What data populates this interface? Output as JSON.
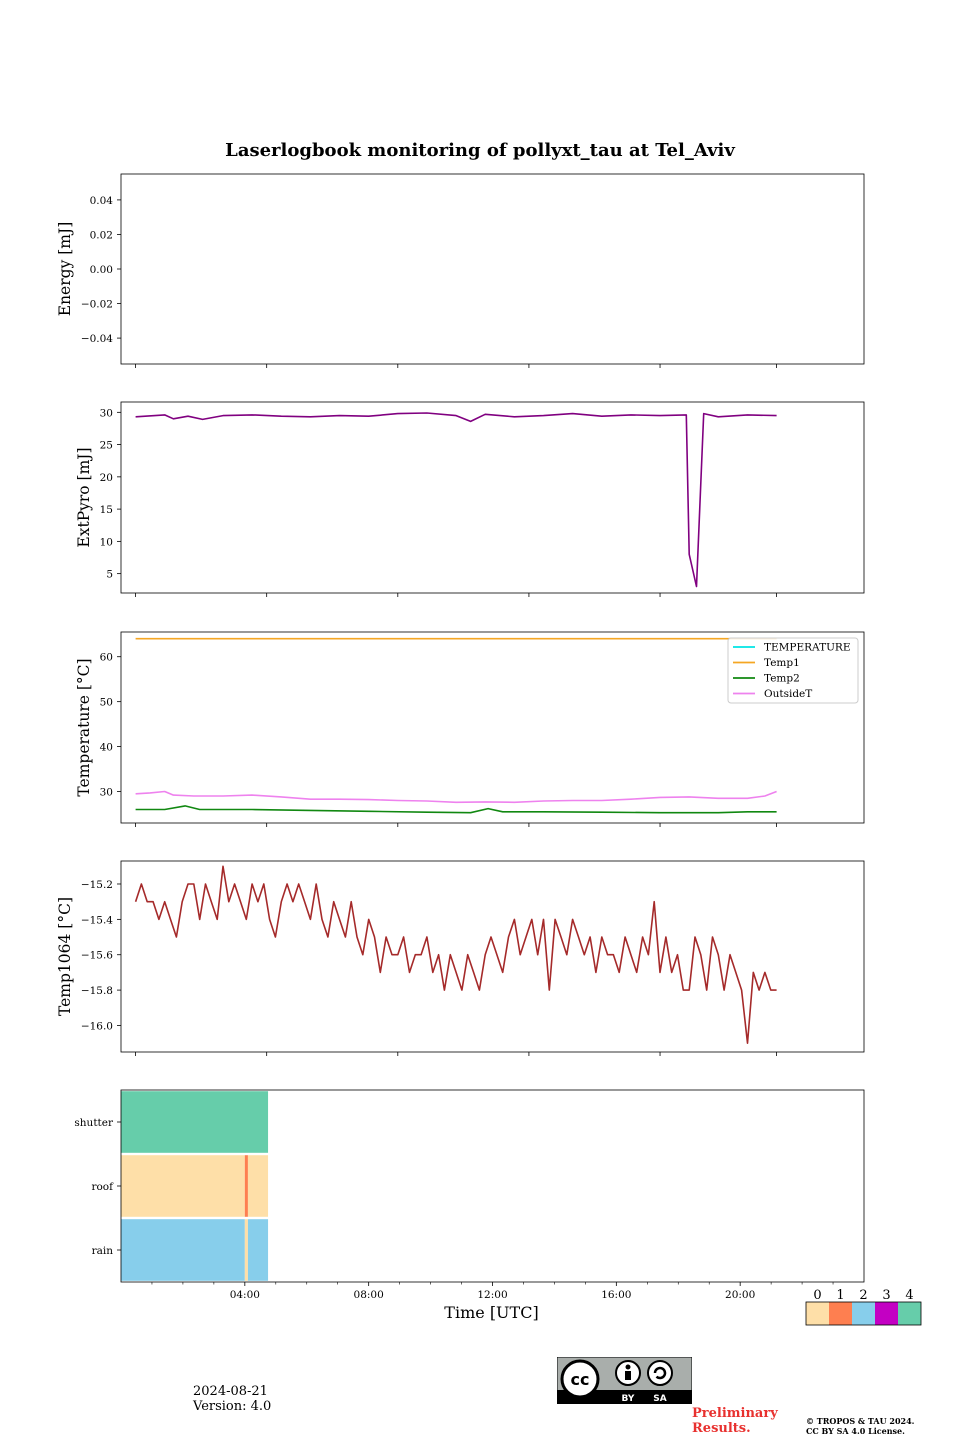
{
  "title": "Laserlogbook monitoring of pollyxt_tau at Tel_Aviv",
  "footer": {
    "date": "2024-08-21",
    "version": "Version: 4.0",
    "preliminary": [
      "Preliminary",
      "Results."
    ],
    "copyright": [
      "© TROPOS & TAU 2024.",
      "CC BY SA 4.0 License."
    ],
    "license_badge": {
      "icon": "cc-by-sa-icon",
      "labels": [
        "BY",
        "SA"
      ]
    }
  },
  "chart_data": [
    {
      "type": "line",
      "ylabel": "Energy [mJ]",
      "ylim": [
        -0.055,
        0.055
      ],
      "yticks": [
        0.04,
        0.02,
        0.0,
        -0.02,
        -0.04
      ],
      "ytick_labels": [
        "0.04",
        "0.02",
        "0.00",
        "−0.02",
        "−0.04"
      ],
      "series": []
    },
    {
      "type": "line",
      "ylabel": "ExtPyro [mJ]",
      "ylim": [
        2,
        31.6
      ],
      "yticks": [
        30,
        25,
        20,
        15,
        10,
        5
      ],
      "ytick_labels": [
        "30",
        "25",
        "20",
        "15",
        "10",
        "5"
      ],
      "series": [
        {
          "color": "#800080",
          "x": [
            1.0,
            2.0,
            2.3,
            2.8,
            3.3,
            4.0,
            5.0,
            6.0,
            7.0,
            8.0,
            9.0,
            10.0,
            11.0,
            12.0,
            12.5,
            13.0,
            14.0,
            15.0,
            16.0,
            17.0,
            18.0,
            19.0,
            19.9,
            20.0,
            20.25,
            20.5,
            21.0,
            22.0,
            23.0
          ],
          "y": [
            29.3,
            29.6,
            29.0,
            29.4,
            28.9,
            29.5,
            29.6,
            29.4,
            29.3,
            29.5,
            29.4,
            29.8,
            29.9,
            29.5,
            28.6,
            29.7,
            29.3,
            29.5,
            29.8,
            29.4,
            29.6,
            29.5,
            29.6,
            8.0,
            3.0,
            29.8,
            29.3,
            29.6,
            29.5
          ]
        }
      ]
    },
    {
      "type": "line",
      "ylabel": "Temperature [°C]",
      "ylim": [
        23,
        65.5
      ],
      "yticks": [
        60,
        50,
        40,
        30
      ],
      "ytick_labels": [
        "60",
        "50",
        "40",
        "30"
      ],
      "legend": "top-right",
      "series": [
        {
          "name": "TEMPERATURE",
          "color": "#00e5e5",
          "x": [],
          "y": []
        },
        {
          "name": "Temp1",
          "color": "#f5a623",
          "x": [
            1.0,
            23.0
          ],
          "y": [
            64.0,
            64.0
          ]
        },
        {
          "name": "Temp2",
          "color": "#118811",
          "x": [
            1.0,
            2.0,
            2.7,
            3.2,
            5.0,
            7.0,
            9.0,
            11.0,
            12.5,
            13.1,
            13.6,
            15.0,
            17.0,
            19.0,
            21.0,
            22.0,
            23.0
          ],
          "y": [
            26.0,
            26.0,
            26.8,
            26.0,
            26.0,
            25.8,
            25.6,
            25.4,
            25.3,
            26.2,
            25.5,
            25.5,
            25.4,
            25.3,
            25.3,
            25.5,
            25.5
          ]
        },
        {
          "name": "OutsideT",
          "color": "#ee82ee",
          "x": [
            1.0,
            1.5,
            2.0,
            2.3,
            3.0,
            4.0,
            5.0,
            6.0,
            7.0,
            8.0,
            9.0,
            10.0,
            11.0,
            12.0,
            13.0,
            14.0,
            15.0,
            16.0,
            17.0,
            18.0,
            19.0,
            20.0,
            21.0,
            22.0,
            22.6,
            23.0
          ],
          "y": [
            29.5,
            29.7,
            30.0,
            29.2,
            29.0,
            29.0,
            29.2,
            28.8,
            28.3,
            28.3,
            28.2,
            28.0,
            27.9,
            27.6,
            27.7,
            27.6,
            27.9,
            28.0,
            28.0,
            28.3,
            28.7,
            28.8,
            28.5,
            28.5,
            29.0,
            30.0
          ]
        }
      ]
    },
    {
      "type": "line",
      "ylabel": "Temp1064 [°C]",
      "ylim": [
        -16.15,
        -15.07
      ],
      "yticks": [
        -15.2,
        -15.4,
        -15.6,
        -15.8,
        -16.0
      ],
      "ytick_labels": [
        "−15.2",
        "−15.4",
        "−15.6",
        "−15.8",
        "−16.0"
      ],
      "series": [
        {
          "color": "#a52a2a",
          "x": [
            1.0,
            1.2,
            1.4,
            1.6,
            1.8,
            2.0,
            2.2,
            2.4,
            2.6,
            2.8,
            3.0,
            3.2,
            3.4,
            3.6,
            3.8,
            4.0,
            4.2,
            4.4,
            4.6,
            4.8,
            5.0,
            5.2,
            5.4,
            5.6,
            5.8,
            6.0,
            6.2,
            6.4,
            6.6,
            6.8,
            7.0,
            7.2,
            7.4,
            7.6,
            7.8,
            8.0,
            8.2,
            8.4,
            8.6,
            8.8,
            9.0,
            9.2,
            9.4,
            9.6,
            9.8,
            10.0,
            10.2,
            10.4,
            10.6,
            10.8,
            11.0,
            11.2,
            11.4,
            11.6,
            11.8,
            12.0,
            12.2,
            12.4,
            12.6,
            12.8,
            13.0,
            13.2,
            13.4,
            13.6,
            13.8,
            14.0,
            14.2,
            14.4,
            14.6,
            14.8,
            15.0,
            15.2,
            15.4,
            15.6,
            15.8,
            16.0,
            16.2,
            16.4,
            16.6,
            16.8,
            17.0,
            17.2,
            17.4,
            17.6,
            17.8,
            18.0,
            18.2,
            18.4,
            18.6,
            18.8,
            19.0,
            19.2,
            19.4,
            19.6,
            19.8,
            20.0,
            20.2,
            20.4,
            20.6,
            20.8,
            21.0,
            21.2,
            21.4,
            21.6,
            21.8,
            22.0,
            22.2,
            22.4,
            22.6,
            22.8,
            23.0
          ],
          "y": [
            -15.3,
            -15.2,
            -15.3,
            -15.3,
            -15.4,
            -15.3,
            -15.4,
            -15.5,
            -15.3,
            -15.2,
            -15.2,
            -15.4,
            -15.2,
            -15.3,
            -15.4,
            -15.1,
            -15.3,
            -15.2,
            -15.3,
            -15.4,
            -15.2,
            -15.3,
            -15.2,
            -15.4,
            -15.5,
            -15.3,
            -15.2,
            -15.3,
            -15.2,
            -15.3,
            -15.4,
            -15.2,
            -15.4,
            -15.5,
            -15.3,
            -15.4,
            -15.5,
            -15.3,
            -15.5,
            -15.6,
            -15.4,
            -15.5,
            -15.7,
            -15.5,
            -15.6,
            -15.6,
            -15.5,
            -15.7,
            -15.6,
            -15.6,
            -15.5,
            -15.7,
            -15.6,
            -15.8,
            -15.6,
            -15.7,
            -15.8,
            -15.6,
            -15.7,
            -15.8,
            -15.6,
            -15.5,
            -15.6,
            -15.7,
            -15.5,
            -15.4,
            -15.6,
            -15.5,
            -15.4,
            -15.6,
            -15.4,
            -15.8,
            -15.4,
            -15.5,
            -15.6,
            -15.4,
            -15.5,
            -15.6,
            -15.5,
            -15.7,
            -15.5,
            -15.6,
            -15.6,
            -15.7,
            -15.5,
            -15.6,
            -15.7,
            -15.5,
            -15.6,
            -15.3,
            -15.7,
            -15.5,
            -15.7,
            -15.6,
            -15.8,
            -15.8,
            -15.5,
            -15.6,
            -15.8,
            -15.5,
            -15.6,
            -15.8,
            -15.6,
            -15.7,
            -15.8,
            -16.1,
            -15.7,
            -15.8,
            -15.7,
            -15.8,
            -15.8
          ]
        }
      ]
    },
    {
      "type": "heatmap",
      "rows": [
        "shutter",
        "roof",
        "rain"
      ],
      "xlabel": "Time [UTC]",
      "xticks": [
        4,
        8,
        12,
        16,
        20
      ],
      "xtick_labels": [
        "04:00",
        "08:00",
        "12:00",
        "16:00",
        "20:00"
      ],
      "x_range_hours": [
        0,
        24
      ],
      "data_end_hour": 4.75,
      "cells": [
        {
          "row": "shutter",
          "start": 0.0,
          "end": 4.75,
          "flag": 4
        },
        {
          "row": "roof",
          "start": 0.0,
          "end": 4.0,
          "flag": 0
        },
        {
          "row": "roof",
          "start": 4.0,
          "end": 4.1,
          "flag": 1
        },
        {
          "row": "roof",
          "start": 4.1,
          "end": 4.75,
          "flag": 0
        },
        {
          "row": "rain",
          "start": 0.0,
          "end": 4.0,
          "flag": 2
        },
        {
          "row": "rain",
          "start": 4.0,
          "end": 4.1,
          "flag": 0
        },
        {
          "row": "rain",
          "start": 4.1,
          "end": 4.75,
          "flag": 2
        }
      ],
      "colorbar": {
        "labels": [
          "0",
          "1",
          "2",
          "3",
          "4"
        ],
        "colors": [
          "#fedfa8",
          "#fe7f50",
          "#87ceeb",
          "#c300c3",
          "#66cdaa"
        ]
      }
    }
  ]
}
